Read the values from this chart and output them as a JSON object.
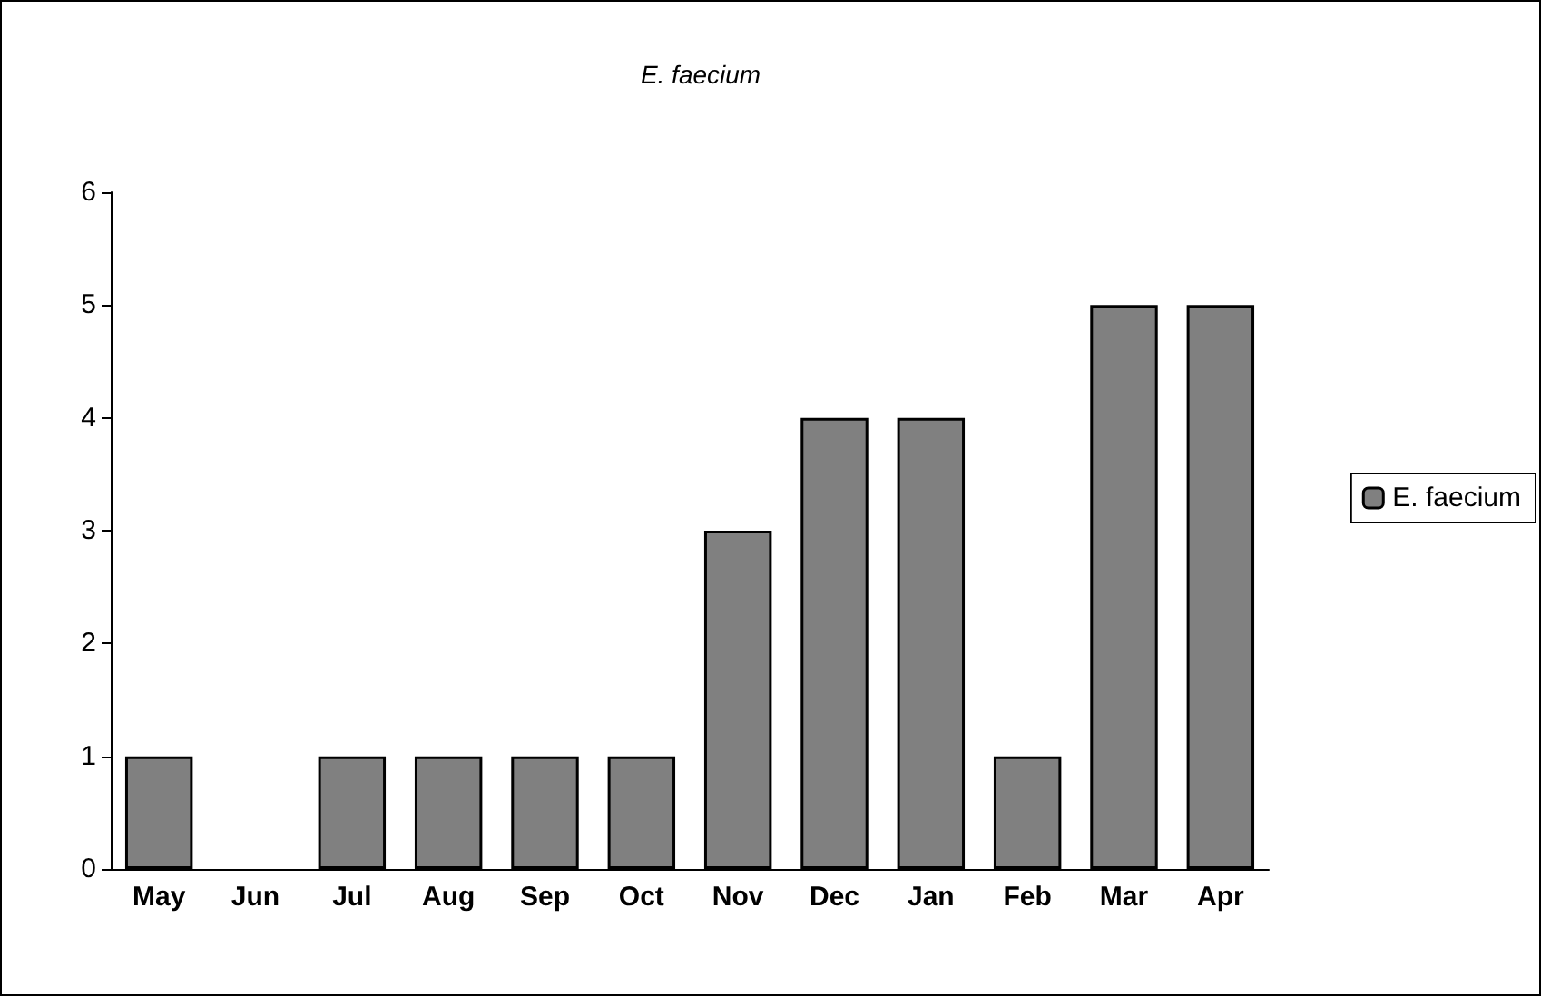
{
  "chart_data": {
    "type": "bar",
    "title": "E. faecium",
    "categories": [
      "May",
      "Jun",
      "Jul",
      "Aug",
      "Sep",
      "Oct",
      "Nov",
      "Dec",
      "Jan",
      "Feb",
      "Mar",
      "Apr"
    ],
    "series": [
      {
        "name": "E. faecium",
        "color": "#808080",
        "values": [
          1,
          0,
          1,
          1,
          1,
          1,
          3,
          4,
          4,
          1,
          5,
          5
        ]
      }
    ],
    "ylim": [
      0,
      6
    ],
    "yticks": [
      0,
      1,
      2,
      3,
      4,
      5,
      6
    ],
    "grid": false,
    "legend": "right"
  }
}
